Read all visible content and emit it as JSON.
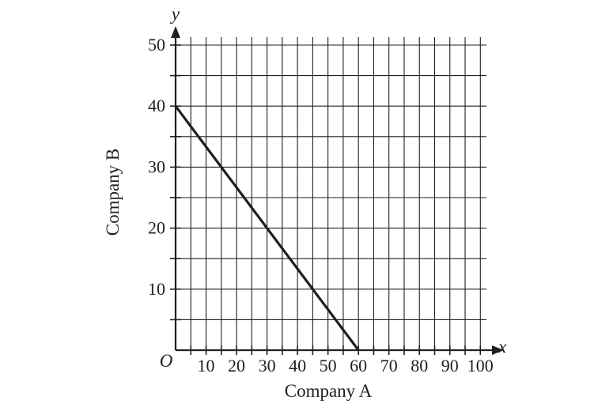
{
  "chart_data": {
    "type": "line",
    "xlabel": "Company A",
    "ylabel": "Company B",
    "x_var": "x",
    "y_var": "y",
    "origin_label": "O",
    "xlim": [
      0,
      102
    ],
    "ylim": [
      0,
      50
    ],
    "x_ticks": [
      10,
      20,
      30,
      40,
      50,
      60,
      70,
      80,
      90,
      100
    ],
    "y_ticks": [
      10,
      20,
      30,
      40,
      50
    ],
    "x_grid_step": 5,
    "y_grid_step": 5,
    "grid": true,
    "series": [
      {
        "x": [
          0,
          60
        ],
        "y": [
          40,
          0
        ]
      }
    ]
  }
}
